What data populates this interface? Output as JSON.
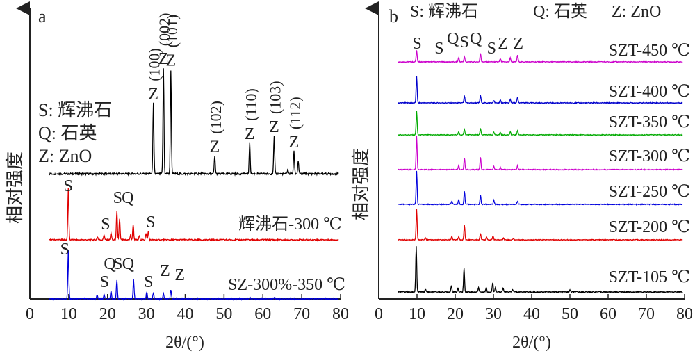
{
  "chart_data": [
    {
      "panel": "a",
      "type": "line",
      "xlabel": "2θ/(°)",
      "ylabel": "相对强度",
      "xlim": [
        0,
        80
      ],
      "xticks": [
        0,
        10,
        20,
        30,
        40,
        50,
        60,
        70,
        80
      ],
      "grid": false,
      "legend": [
        "S: 辉沸石",
        "Q: 石英",
        "Z: ZnO"
      ],
      "series": [
        {
          "color": "#000000",
          "baseline": 0.0,
          "peaks": [
            [
              31.8,
              0.92
            ],
            [
              34.4,
              1.38
            ],
            [
              36.3,
              1.36
            ],
            [
              47.6,
              0.23
            ],
            [
              56.6,
              0.4
            ],
            [
              62.9,
              0.49
            ],
            [
              66.4,
              0.06
            ],
            [
              68.0,
              0.29
            ],
            [
              69.1,
              0.17
            ]
          ],
          "annotations": [
            {
              "text": "Z",
              "x": 31.8,
              "hkl": "(100)"
            },
            {
              "text": "Z",
              "x": 34.4,
              "hkl": "(002)"
            },
            {
              "text": "Z",
              "x": 36.3,
              "hkl": "(101)"
            },
            {
              "text": "Z",
              "x": 47.6,
              "hkl": "(102)"
            },
            {
              "text": "Z",
              "x": 56.6,
              "hkl": "(110)"
            },
            {
              "text": "Z",
              "x": 62.9,
              "hkl": "(103)"
            },
            {
              "text": "Z",
              "x": 68.0,
              "hkl": "(112)"
            }
          ]
        },
        {
          "name": "辉沸石-300 ℃",
          "color": "#e00000",
          "peaks": [
            [
              9.9,
              1.0
            ],
            [
              17.4,
              0.06
            ],
            [
              19.1,
              0.1
            ],
            [
              20.9,
              0.14
            ],
            [
              22.4,
              0.55
            ],
            [
              23.1,
              0.4
            ],
            [
              25.9,
              0.08
            ],
            [
              26.6,
              0.3
            ],
            [
              28.2,
              0.08
            ],
            [
              29.9,
              0.12
            ],
            [
              30.5,
              0.16
            ]
          ],
          "annotations": [
            {
              "text": "S",
              "x": 9.9
            },
            {
              "text": "S",
              "x": 19.5
            },
            {
              "text": "S",
              "x": 22.6
            },
            {
              "text": "Q",
              "x": 25.2
            },
            {
              "text": "S",
              "x": 31.1
            }
          ]
        },
        {
          "name": "SZ-300%-350 ℃",
          "color": "#0000dd",
          "peaks": [
            [
              9.9,
              0.85
            ],
            [
              17.3,
              0.07
            ],
            [
              19.1,
              0.08
            ],
            [
              20.9,
              0.14
            ],
            [
              22.4,
              0.33
            ],
            [
              26.7,
              0.33
            ],
            [
              30.1,
              0.12
            ],
            [
              31.8,
              0.1
            ],
            [
              34.4,
              0.1
            ],
            [
              36.3,
              0.16
            ],
            [
              56.6,
              0.03
            ],
            [
              62.9,
              0.03
            ]
          ],
          "annotations": [
            {
              "text": "S",
              "x": 9.0
            },
            {
              "text": "S",
              "x": 19.2
            },
            {
              "text": "Q",
              "x": 20.6
            },
            {
              "text": "S",
              "x": 22.7
            },
            {
              "text": "Q",
              "x": 25.3
            },
            {
              "text": "S",
              "x": 30.6
            },
            {
              "text": "Z",
              "x": 34.8
            },
            {
              "text": "Z",
              "x": 38.6
            }
          ]
        }
      ]
    },
    {
      "panel": "b",
      "type": "line",
      "xlabel": "2θ/(°)",
      "ylabel": "相对强度",
      "xlim": [
        0,
        80
      ],
      "xticks": [
        0,
        10,
        20,
        30,
        40,
        50,
        60,
        70,
        80
      ],
      "grid": false,
      "legend": [
        "S: 辉沸石",
        "Q: 石英",
        "Z: ZnO"
      ],
      "series": [
        {
          "name": "SZT-450 ℃",
          "color": "#cc00cc",
          "peaks": [
            [
              9.9,
              0.38
            ],
            [
              20.9,
              0.14
            ],
            [
              22.4,
              0.17
            ],
            [
              26.6,
              0.28
            ],
            [
              31.8,
              0.1
            ],
            [
              34.4,
              0.13
            ],
            [
              36.3,
              0.22
            ]
          ],
          "annotations": [
            {
              "text": "S",
              "x": 10.0
            },
            {
              "text": "S",
              "x": 15.8
            },
            {
              "text": "Q",
              "x": 19.4
            },
            {
              "text": "S",
              "x": 22.4
            },
            {
              "text": "Q",
              "x": 25.4
            },
            {
              "text": "S",
              "x": 29.5
            },
            {
              "text": "Z",
              "x": 32.5
            },
            {
              "text": "Z",
              "x": 36.5
            }
          ]
        },
        {
          "name": "SZT-400 ℃",
          "color": "#0000cc",
          "peaks": [
            [
              9.9,
              0.78
            ],
            [
              22.4,
              0.2
            ],
            [
              26.6,
              0.22
            ],
            [
              30.1,
              0.07
            ],
            [
              31.8,
              0.08
            ],
            [
              34.4,
              0.1
            ],
            [
              36.3,
              0.16
            ]
          ]
        },
        {
          "name": "SZT-350 ℃",
          "color": "#00aa00",
          "peaks": [
            [
              9.9,
              0.82
            ],
            [
              20.9,
              0.1
            ],
            [
              22.4,
              0.2
            ],
            [
              26.6,
              0.22
            ],
            [
              30.1,
              0.08
            ],
            [
              31.8,
              0.09
            ],
            [
              34.4,
              0.1
            ],
            [
              36.3,
              0.16
            ]
          ]
        },
        {
          "name": "SZT-300 ℃",
          "color": "#cc00cc",
          "peaks": [
            [
              9.9,
              1.0
            ],
            [
              20.9,
              0.12
            ],
            [
              22.4,
              0.36
            ],
            [
              26.6,
              0.38
            ],
            [
              30.1,
              0.1
            ],
            [
              31.8,
              0.08
            ],
            [
              36.3,
              0.12
            ]
          ]
        },
        {
          "name": "SZT-250 ℃",
          "color": "#0000dd",
          "peaks": [
            [
              9.9,
              1.0
            ],
            [
              19.1,
              0.1
            ],
            [
              20.9,
              0.14
            ],
            [
              22.4,
              0.4
            ],
            [
              26.6,
              0.28
            ],
            [
              30.1,
              0.12
            ],
            [
              36.3,
              0.1
            ]
          ]
        },
        {
          "name": "SZT-200 ℃",
          "color": "#e00000",
          "peaks": [
            [
              9.9,
              1.0
            ],
            [
              12.2,
              0.08
            ],
            [
              19.1,
              0.12
            ],
            [
              20.9,
              0.1
            ],
            [
              22.4,
              0.48
            ],
            [
              26.6,
              0.22
            ],
            [
              28.2,
              0.1
            ],
            [
              29.9,
              0.14
            ],
            [
              32.6,
              0.06
            ],
            [
              35.2,
              0.05
            ]
          ]
        },
        {
          "name": "SZT-105 ℃",
          "color": "#000000",
          "peaks": [
            [
              9.8,
              1.0
            ],
            [
              12.2,
              0.06
            ],
            [
              19.0,
              0.14
            ],
            [
              20.7,
              0.08
            ],
            [
              22.3,
              0.52
            ],
            [
              26.1,
              0.1
            ],
            [
              28.1,
              0.1
            ],
            [
              29.8,
              0.2
            ],
            [
              30.5,
              0.1
            ],
            [
              32.5,
              0.08
            ],
            [
              35.0,
              0.06
            ],
            [
              50.0,
              0.04
            ]
          ]
        }
      ]
    }
  ]
}
